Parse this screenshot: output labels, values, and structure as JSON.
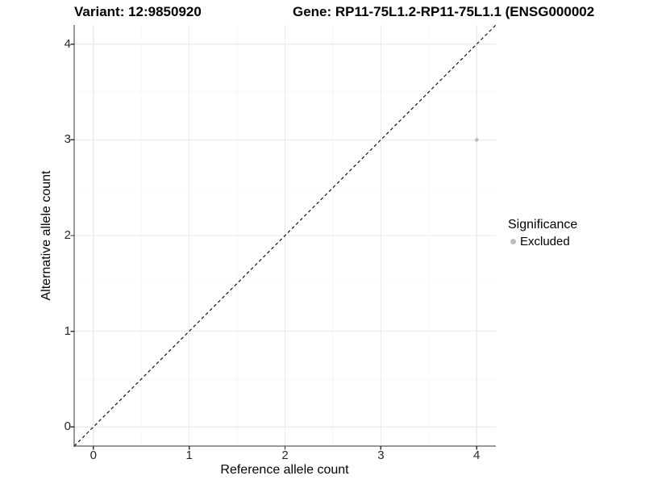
{
  "titles": {
    "variant": "Variant: 12:9850920",
    "gene": "Gene: RP11-75L1.2-RP11-75L1.1 (ENSG000002"
  },
  "chart_data": {
    "type": "scatter",
    "title_left": "Variant: 12:9850920",
    "title_right": "Gene: RP11-75L1.2-RP11-75L1.1 (ENSG000002",
    "xlabel": "Reference allele count",
    "ylabel": "Alternative allele count",
    "xlim": [
      -0.2,
      4.2
    ],
    "ylim": [
      -0.2,
      4.2
    ],
    "xticks": [
      0,
      1,
      2,
      3,
      4
    ],
    "yticks": [
      0,
      1,
      2,
      3,
      4
    ],
    "xticks_minor": [
      0.5,
      1.5,
      2.5,
      3.5
    ],
    "yticks_minor": [
      0.5,
      1.5,
      2.5,
      3.5
    ],
    "grid": true,
    "series": [
      {
        "name": "Excluded",
        "points": [
          {
            "x": 4,
            "y": 3
          }
        ]
      }
    ],
    "reference_line": {
      "style": "dashed",
      "from": [
        -0.2,
        -0.2
      ],
      "to": [
        4.2,
        4.2
      ],
      "meaning": "identity line y = x"
    },
    "legend": {
      "title": "Significance",
      "position": "right",
      "entries": [
        {
          "label": "Excluded",
          "color": "#bdbdbd"
        }
      ]
    },
    "colors": {
      "point": "#bdbdbd",
      "grid_major": "#ebebeb",
      "grid_minor": "#f5f5f5",
      "axis": "#333333",
      "dashed_line": "#000000",
      "background": "#ffffff"
    }
  }
}
